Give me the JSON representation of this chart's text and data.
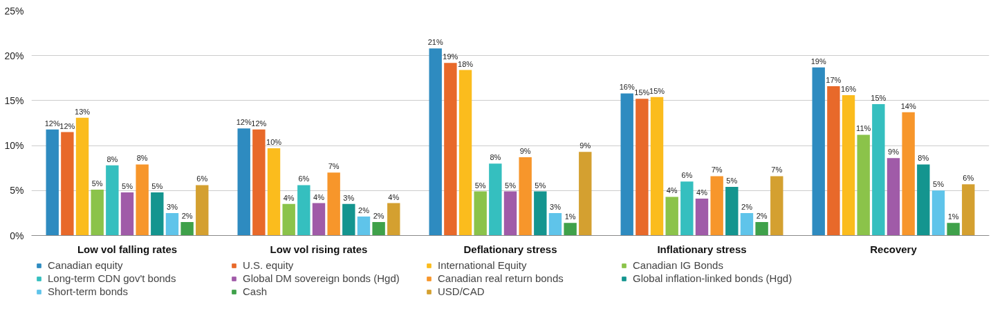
{
  "chart_data": {
    "type": "bar",
    "categories": [
      "Low vol falling rates",
      "Low vol rising rates",
      "Deflationary stress",
      "Inflationary stress",
      "Recovery"
    ],
    "ylim": [
      0,
      25
    ],
    "yticks": [
      {
        "value": 0,
        "label": "0%"
      },
      {
        "value": 5,
        "label": "5%"
      },
      {
        "value": 10,
        "label": "10%"
      },
      {
        "value": 15,
        "label": "15%"
      },
      {
        "value": 20,
        "label": "20%"
      },
      {
        "value": 25,
        "label": "25%"
      }
    ],
    "grid": "y",
    "legend": "bottom",
    "series": [
      {
        "name": "Canadian equity",
        "color": "#2e8bc0",
        "values": [
          11.8,
          11.9,
          20.8,
          15.8,
          18.7
        ],
        "value_labels": [
          "12%",
          "12%",
          "21%",
          "16%",
          "19%"
        ]
      },
      {
        "name": "U.S. equity",
        "color": "#e8692a",
        "values": [
          11.5,
          11.8,
          19.2,
          15.2,
          16.6
        ],
        "value_labels": [
          "12%",
          "12%",
          "19%",
          "15%",
          "17%"
        ]
      },
      {
        "name": "International Equity",
        "color": "#fbbc1d",
        "values": [
          13.1,
          9.7,
          18.4,
          15.4,
          15.6
        ],
        "value_labels": [
          "13%",
          "10%",
          "18%",
          "15%",
          "16%"
        ]
      },
      {
        "name": "Canadian IG Bonds",
        "color": "#8bc34a",
        "values": [
          5.1,
          3.5,
          4.9,
          4.3,
          11.2
        ],
        "value_labels": [
          "5%",
          "4%",
          "5%",
          "4%",
          "11%"
        ]
      },
      {
        "name": "Long-term CDN gov't bonds",
        "color": "#35bfbf",
        "values": [
          7.8,
          5.6,
          8.0,
          6.0,
          14.6
        ],
        "value_labels": [
          "8%",
          "6%",
          "8%",
          "6%",
          "15%"
        ]
      },
      {
        "name": "Global DM sovereign bonds (Hgd)",
        "color": "#a05ba8",
        "values": [
          4.8,
          3.6,
          4.9,
          4.1,
          8.6
        ],
        "value_labels": [
          "5%",
          "4%",
          "5%",
          "4%",
          "9%"
        ]
      },
      {
        "name": "Canadian real return bonds",
        "color": "#f7962b",
        "values": [
          7.9,
          7.0,
          8.7,
          6.6,
          13.7
        ],
        "value_labels": [
          "8%",
          "7%",
          "9%",
          "7%",
          "14%"
        ]
      },
      {
        "name": "Global inflation-linked bonds (Hgd)",
        "color": "#14958f",
        "values": [
          4.8,
          3.5,
          4.9,
          5.4,
          7.9
        ],
        "value_labels": [
          "5%",
          "3%",
          "5%",
          "5%",
          "8%"
        ]
      },
      {
        "name": "Short-term bonds",
        "color": "#5fc4ea",
        "values": [
          2.5,
          2.1,
          2.5,
          2.5,
          5.0
        ],
        "value_labels": [
          "3%",
          "2%",
          "3%",
          "2%",
          "5%"
        ]
      },
      {
        "name": "Cash",
        "color": "#3fa14a",
        "values": [
          1.5,
          1.5,
          1.4,
          1.5,
          1.4
        ],
        "value_labels": [
          "2%",
          "2%",
          "1%",
          "2%",
          "1%"
        ]
      },
      {
        "name": "USD/CAD",
        "color": "#d4a030",
        "values": [
          5.6,
          3.6,
          9.3,
          6.6,
          5.7
        ],
        "value_labels": [
          "6%",
          "4%",
          "9%",
          "7%",
          "6%"
        ]
      }
    ]
  }
}
